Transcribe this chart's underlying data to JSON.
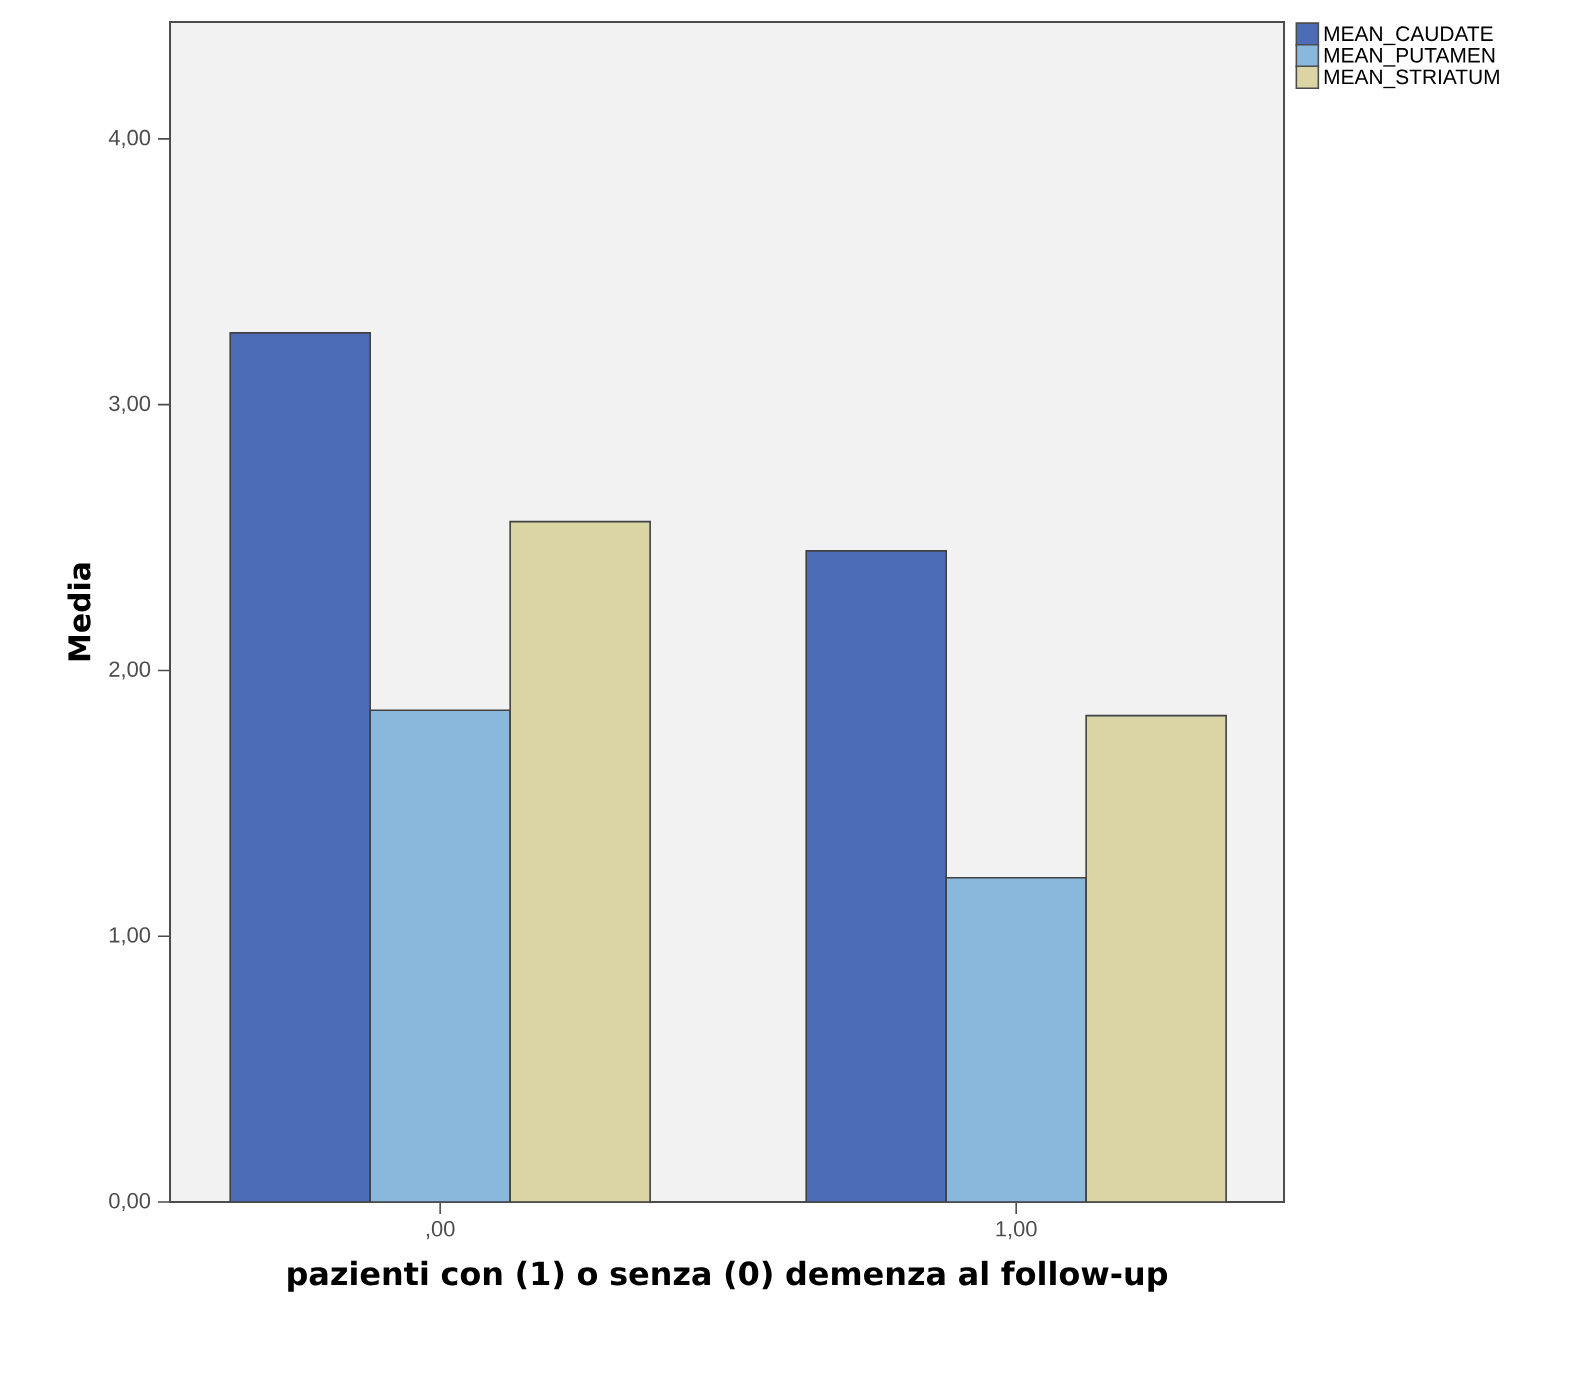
{
  "chart_data": {
    "type": "bar",
    "xlabel": "pazienti con (1) o senza (0) demenza al follow-up",
    "ylabel": "Media",
    "categories": [
      ",00",
      "1,00"
    ],
    "series": [
      {
        "name": "MEAN_CAUDATE",
        "color": "#4d6cb8",
        "values": [
          3.27,
          2.45
        ]
      },
      {
        "name": "MEAN_PUTAMEN",
        "color": "#8ab7dc",
        "values": [
          1.85,
          1.22
        ]
      },
      {
        "name": "MEAN_STRIATUM",
        "color": "#dbd5a6",
        "values": [
          2.56,
          1.83
        ]
      }
    ],
    "ylim": [
      0,
      4.44
    ],
    "yticks": [
      {
        "value": 0,
        "label": "0,00"
      },
      {
        "value": 1,
        "label": "1,00"
      },
      {
        "value": 2,
        "label": "2,00"
      },
      {
        "value": 3,
        "label": "3,00"
      },
      {
        "value": 4,
        "label": "4,00"
      }
    ],
    "grid": false,
    "legend": "top right"
  }
}
